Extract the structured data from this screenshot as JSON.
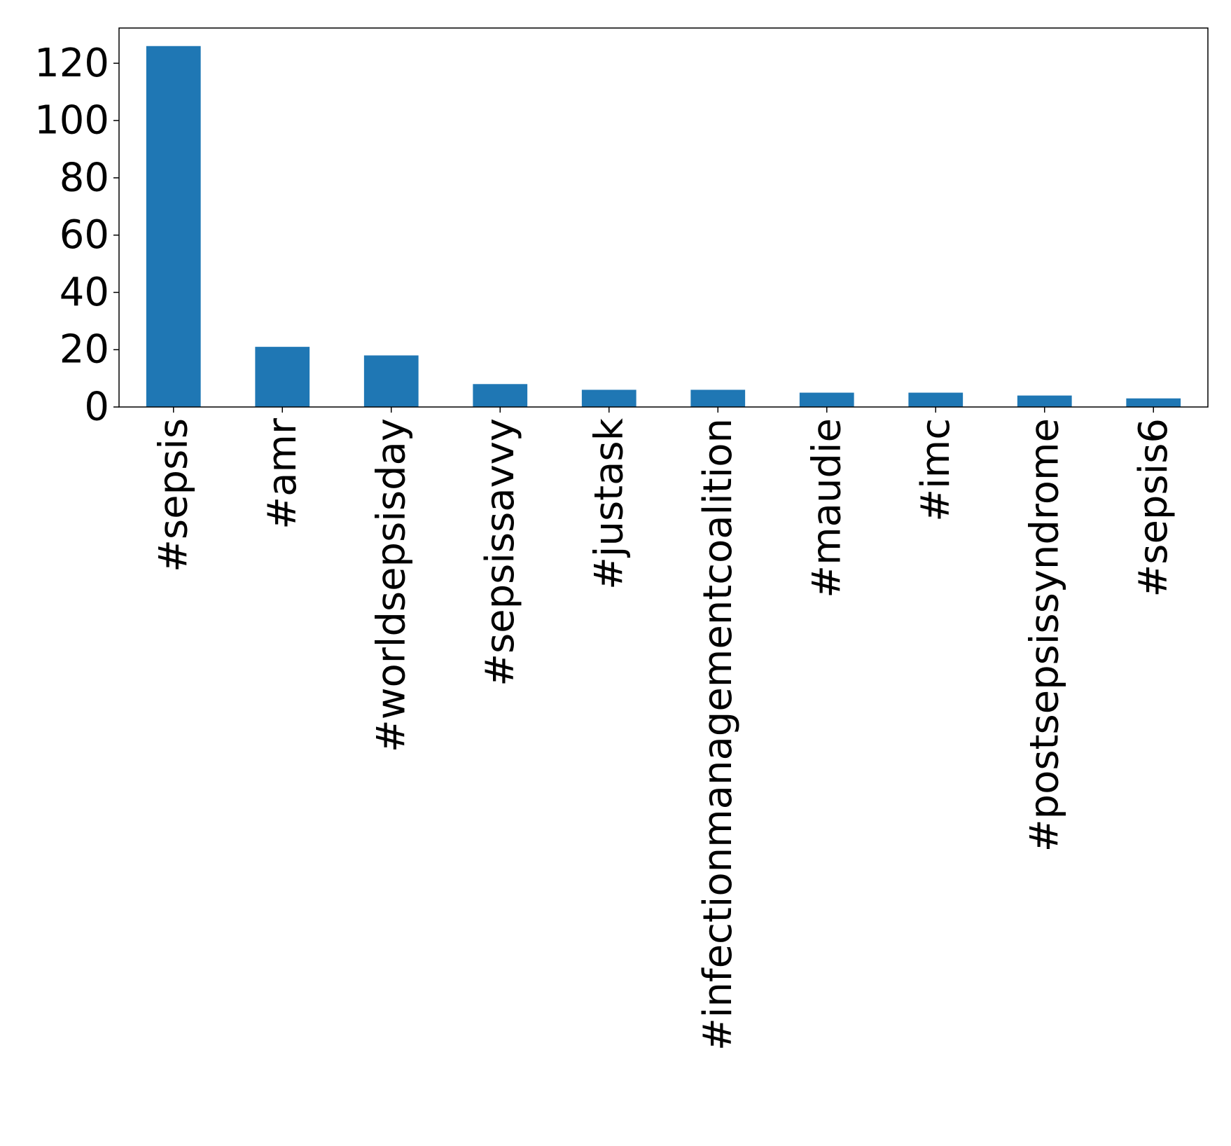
{
  "chart_data": {
    "type": "bar",
    "title": "",
    "xlabel": "",
    "ylabel": "",
    "categories": [
      "#sepsis",
      "#amr",
      "#worldsepsisday",
      "#sepsissavvy",
      "#justask",
      "#infectionmanagementcoalition",
      "#maudie",
      "#imc",
      "#postsepsissyndrome",
      "#sepsis6"
    ],
    "values": [
      126,
      21,
      18,
      8,
      6,
      6,
      5,
      5,
      4,
      3
    ],
    "ylim": [
      0,
      132.3
    ],
    "yticks": [
      0,
      20,
      40,
      60,
      80,
      100,
      120
    ],
    "grid": false,
    "bar_color": "#1f77b4"
  }
}
